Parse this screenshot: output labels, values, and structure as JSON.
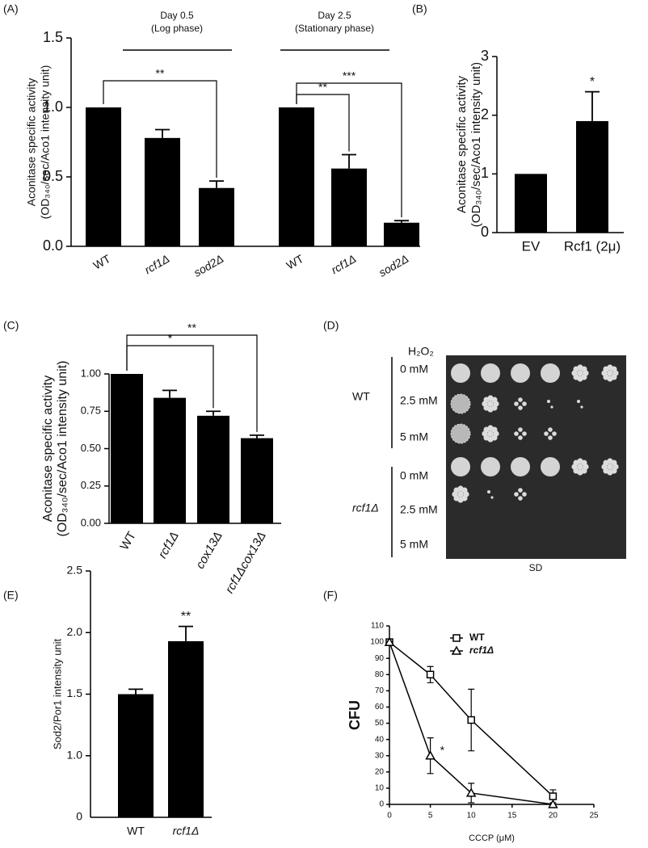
{
  "chart_data": [
    {
      "panel": "(A)",
      "type": "bar",
      "group_labels": [
        [
          "Day 0.5",
          "(Log phase)"
        ],
        [
          "Day 2.5",
          "(Stationary phase)"
        ]
      ],
      "ylabel": [
        "Aconitase specific activity",
        "(OD₃₄₀/sec/Aco1 intensity unit)"
      ],
      "categories": [
        "WT",
        "rcf1Δ",
        "sod2Δ",
        "WT",
        "rcf1Δ",
        "sod2Δ"
      ],
      "italic": [
        false,
        true,
        true,
        false,
        true,
        true
      ],
      "values": [
        1.0,
        0.78,
        0.42,
        1.0,
        0.56,
        0.17
      ],
      "errors": [
        null,
        0.06,
        0.05,
        null,
        0.1,
        0.015
      ],
      "color": "#000000",
      "ylim": [
        0,
        1.5
      ],
      "yticks": [
        {
          "value": 0,
          "label": "0.0"
        },
        0.5,
        {
          "value": 1,
          "label": "1.0"
        },
        1.5
      ],
      "annotations": [
        "**",
        "**",
        "***"
      ]
    },
    {
      "panel": "(B)",
      "type": "bar",
      "ylabel": [
        "Aconitase specific activity",
        "(OD₃₄₀/sec/Aco1 intensity unit)"
      ],
      "categories": [
        "EV",
        "Rcf1 (2μ)"
      ],
      "italic": [
        false,
        false
      ],
      "values": [
        1.0,
        1.9
      ],
      "errors": [
        null,
        0.5
      ],
      "color": "#000000",
      "ylim": [
        0,
        3
      ],
      "yticks": [
        0,
        1,
        2,
        3
      ],
      "annotations": [
        "*"
      ]
    },
    {
      "panel": "(C)",
      "type": "bar",
      "ylabel": [
        "Aconitase specific activity",
        "(OD₃₄₀/sec/Aco1 intensity unit)"
      ],
      "categories": [
        "WT",
        "rcf1Δ",
        "cox13Δ",
        "rcf1Δcox13Δ"
      ],
      "italic": [
        false,
        true,
        true,
        true
      ],
      "values": [
        1.0,
        0.84,
        0.72,
        0.57
      ],
      "errors": [
        null,
        0.05,
        0.03,
        0.02
      ],
      "color": "#000000",
      "ylim": [
        0,
        1
      ],
      "yticks": [
        {
          "value": 0,
          "label": "0.00"
        },
        {
          "value": 0.25,
          "label": "0.25"
        },
        {
          "value": 0.5,
          "label": "0.50"
        },
        {
          "value": 0.75,
          "label": "0.75"
        },
        {
          "value": 1,
          "label": "1.00"
        }
      ],
      "annotations": [
        "*",
        "**"
      ]
    },
    {
      "panel": "(E)",
      "type": "bar",
      "ylabel": [
        "Sod2/Por1 intensity unit"
      ],
      "categories": [
        "WT",
        "rcf1Δ"
      ],
      "italic": [
        false,
        true
      ],
      "values": [
        1.5,
        1.93
      ],
      "errors": [
        0.04,
        0.12
      ],
      "color": "#000000",
      "ylim": [
        0.5,
        2.5
      ],
      "yticks": [
        {
          "value": 1,
          "label": "1.0"
        },
        1.5,
        {
          "value": 2,
          "label": "2.0"
        },
        2.5
      ],
      "axis_start_label": "0",
      "annotations": [
        "**"
      ]
    },
    {
      "panel": "(F)",
      "type": "line",
      "xlabel": "CCCP (μM)",
      "ylabel": [
        "CFU"
      ],
      "x": [
        0,
        5,
        10,
        20
      ],
      "series": [
        {
          "name": "WT",
          "color": "#000000",
          "marker": "square",
          "italic": false,
          "values": [
            100,
            80,
            52,
            5
          ],
          "errors": [
            0,
            5,
            19,
            4
          ]
        },
        {
          "name": "rcf1Δ",
          "color": "#000000",
          "marker": "triangle",
          "italic": true,
          "values": [
            100,
            30,
            7,
            0
          ],
          "errors": [
            0,
            11,
            6,
            0
          ]
        }
      ],
      "xlim": [
        0,
        25
      ],
      "xticks": [
        0,
        5,
        10,
        15,
        20,
        25
      ],
      "ylim": [
        0,
        110
      ],
      "yticks": [
        0,
        10,
        20,
        30,
        40,
        50,
        60,
        70,
        80,
        90,
        100,
        110
      ],
      "legend": "top-right",
      "annotations": [
        "*"
      ]
    }
  ],
  "spot_assay": {
    "panel": "(D)",
    "reagent": "H₂O₂",
    "medium": "SD",
    "strains": [
      {
        "name": "WT",
        "concentrations": [
          "0 mM",
          "2.5 mM",
          "5 mM"
        ]
      },
      {
        "name": "rcf1Δ",
        "concentrations": [
          "0 mM",
          "2.5 mM",
          "5 mM"
        ]
      }
    ]
  }
}
